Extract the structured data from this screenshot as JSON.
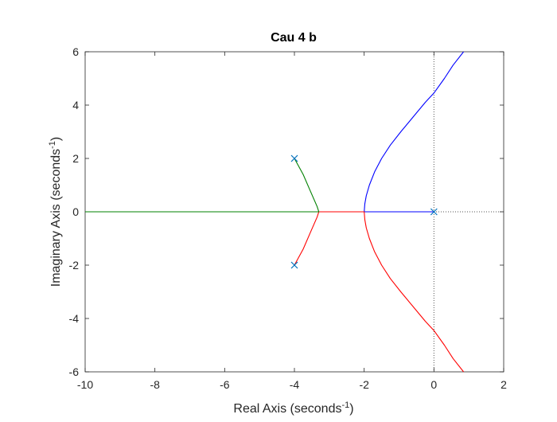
{
  "chart_data": {
    "type": "line",
    "title": "Cau 4 b",
    "xlabel": "Real Axis (seconds",
    "ylabel": "Imaginary Axis (seconds",
    "axis_unit_exponent": "-1",
    "xlim": [
      -10,
      2
    ],
    "ylim": [
      -6,
      6
    ],
    "x_ticks": [
      -10,
      -8,
      -6,
      -4,
      -2,
      0,
      2
    ],
    "y_ticks": [
      -6,
      -4,
      -2,
      0,
      2,
      4,
      6
    ],
    "x_tick_labels": [
      "-10",
      "-8",
      "-6",
      "-4",
      "-2",
      "0",
      "2"
    ],
    "y_tick_labels": [
      "-6",
      "-4",
      "-2",
      "0",
      "2",
      "4",
      "6"
    ],
    "grid": false,
    "legend": "none",
    "poles": [
      {
        "x": -4,
        "y": 2
      },
      {
        "x": -4,
        "y": -2
      },
      {
        "x": 0,
        "y": 0
      }
    ],
    "series": [
      {
        "color": "#0000ff",
        "points": [
          [
            0,
            0
          ],
          [
            -1,
            0
          ],
          [
            -2,
            0
          ],
          [
            -1.98,
            0.3
          ],
          [
            -1.94,
            0.6
          ],
          [
            -1.85,
            1.0
          ],
          [
            -1.7,
            1.5
          ],
          [
            -1.5,
            2.0
          ],
          [
            -1.25,
            2.5
          ],
          [
            -0.95,
            3.0
          ],
          [
            -0.6,
            3.55
          ],
          [
            -0.25,
            4.1
          ],
          [
            0,
            4.45
          ],
          [
            0.3,
            5.0
          ],
          [
            0.55,
            5.5
          ],
          [
            0.85,
            6.0
          ]
        ]
      },
      {
        "color": "#ff0000",
        "points": [
          [
            -4,
            -2
          ],
          [
            -3.75,
            -1.4
          ],
          [
            -3.55,
            -0.8
          ],
          [
            -3.35,
            -0.2
          ],
          [
            -3.3,
            0
          ],
          [
            -2.6,
            0
          ],
          [
            -2,
            0
          ],
          [
            -1.98,
            -0.3
          ],
          [
            -1.94,
            -0.6
          ],
          [
            -1.85,
            -1.0
          ],
          [
            -1.7,
            -1.5
          ],
          [
            -1.5,
            -2.0
          ],
          [
            -1.25,
            -2.5
          ],
          [
            -0.95,
            -3.0
          ],
          [
            -0.6,
            -3.55
          ],
          [
            -0.25,
            -4.1
          ],
          [
            0,
            -4.45
          ],
          [
            0.3,
            -5.0
          ],
          [
            0.55,
            -5.5
          ],
          [
            0.85,
            -6.0
          ]
        ]
      },
      {
        "color": "#008000",
        "points": [
          [
            -4,
            2
          ],
          [
            -3.75,
            1.4
          ],
          [
            -3.55,
            0.8
          ],
          [
            -3.35,
            0.2
          ],
          [
            -3.3,
            0
          ],
          [
            -4.5,
            0
          ],
          [
            -6,
            0
          ],
          [
            -8,
            0
          ],
          [
            -10,
            0
          ]
        ]
      }
    ]
  }
}
